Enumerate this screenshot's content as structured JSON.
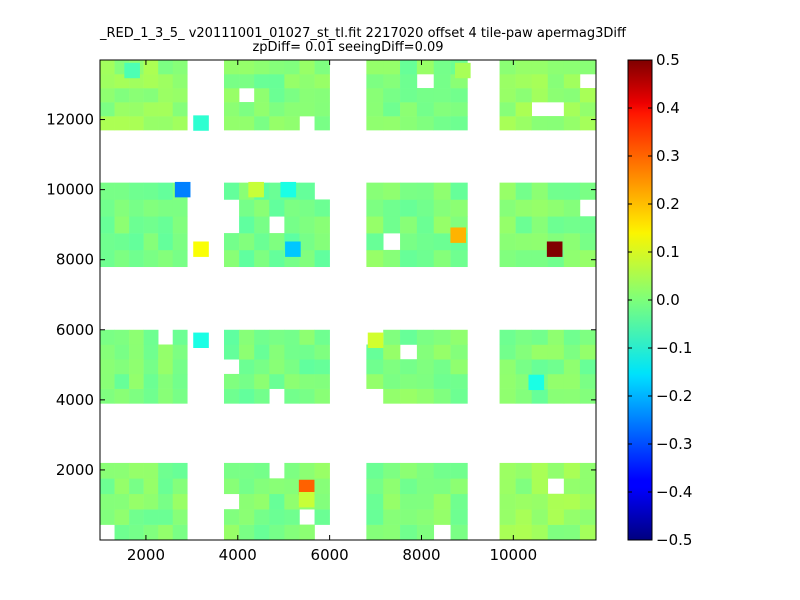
{
  "chart_data": {
    "type": "heatmap",
    "title": "_RED_1_3_5_ v20111001_01027_st_tl.fit 2217020 offset 4 tile-paw apermag3Diff",
    "subtitle": "zpDiff= 0.01 seeingDiff=0.09",
    "xlabel": "",
    "ylabel": "",
    "xlim": [
      1000,
      11800
    ],
    "ylim": [
      0,
      13700
    ],
    "xticks": [
      "2000",
      "4000",
      "6000",
      "8000",
      "10000"
    ],
    "xtick_values": [
      2000,
      4000,
      6000,
      8000,
      10000
    ],
    "yticks": [
      "2000",
      "4000",
      "6000",
      "8000",
      "10000",
      "12000"
    ],
    "ytick_values": [
      2000,
      4000,
      6000,
      8000,
      10000,
      12000
    ],
    "colormap": "jet",
    "color_range": [
      -0.5,
      0.5
    ],
    "colorbar_ticks": [
      "0.5",
      "0.4",
      "0.3",
      "0.2",
      "0.1",
      "0.0",
      "−0.1",
      "−0.2",
      "−0.3",
      "−0.4",
      "−0.5"
    ],
    "colorbar_tick_values": [
      0.5,
      0.4,
      0.3,
      0.2,
      0.1,
      0.0,
      -0.1,
      -0.2,
      -0.3,
      -0.4,
      -0.5
    ],
    "cell_size": [
      340,
      440
    ],
    "tiles": [
      {
        "x": [
          1000,
          2900
        ],
        "y": [
          0,
          2200
        ],
        "value": 0.0
      },
      {
        "x": [
          3700,
          6000
        ],
        "y": [
          0,
          2200
        ],
        "value": 0.0
      },
      {
        "x": [
          6800,
          9000
        ],
        "y": [
          0,
          2200
        ],
        "value": 0.0
      },
      {
        "x": [
          9700,
          11800
        ],
        "y": [
          0,
          2200
        ],
        "value": 0.02
      },
      {
        "x": [
          1000,
          2900
        ],
        "y": [
          3900,
          6000
        ],
        "value": 0.0
      },
      {
        "x": [
          3700,
          6000
        ],
        "y": [
          3900,
          6000
        ],
        "value": -0.01
      },
      {
        "x": [
          6800,
          9000
        ],
        "y": [
          3900,
          6000
        ],
        "value": 0.0
      },
      {
        "x": [
          9700,
          11800
        ],
        "y": [
          3900,
          6000
        ],
        "value": 0.0
      },
      {
        "x": [
          1000,
          2900
        ],
        "y": [
          7800,
          10200
        ],
        "value": -0.01
      },
      {
        "x": [
          3700,
          6000
        ],
        "y": [
          7800,
          10200
        ],
        "value": -0.01
      },
      {
        "x": [
          6800,
          9000
        ],
        "y": [
          7800,
          10200
        ],
        "value": 0.0
      },
      {
        "x": [
          9700,
          11800
        ],
        "y": [
          7800,
          10200
        ],
        "value": 0.0
      },
      {
        "x": [
          1000,
          2900
        ],
        "y": [
          11700,
          13700
        ],
        "value": 0.02
      },
      {
        "x": [
          3700,
          6000
        ],
        "y": [
          11700,
          13700
        ],
        "value": 0.0
      },
      {
        "x": [
          6800,
          9000
        ],
        "y": [
          11700,
          13700
        ],
        "value": 0.0
      },
      {
        "x": [
          9700,
          11800
        ],
        "y": [
          11700,
          13700
        ],
        "value": 0.02
      }
    ],
    "highlight_cells": [
      {
        "x": 10900,
        "y": 8300,
        "value": 0.5
      },
      {
        "x": 5500,
        "y": 1500,
        "value": 0.28
      },
      {
        "x": 8800,
        "y": 8700,
        "value": 0.2
      },
      {
        "x": 3200,
        "y": 8300,
        "value": 0.12
      },
      {
        "x": 7000,
        "y": 5700,
        "value": 0.08
      },
      {
        "x": 4400,
        "y": 10000,
        "value": 0.07
      },
      {
        "x": 5500,
        "y": 1150,
        "value": 0.07
      },
      {
        "x": 2800,
        "y": 10000,
        "value": -0.25
      },
      {
        "x": 5200,
        "y": 8300,
        "value": -0.18
      },
      {
        "x": 5100,
        "y": 10000,
        "value": -0.1
      },
      {
        "x": 3200,
        "y": 5700,
        "value": -0.1
      },
      {
        "x": 3200,
        "y": 11900,
        "value": -0.08
      },
      {
        "x": 10500,
        "y": 4500,
        "value": -0.1
      },
      {
        "x": 1700,
        "y": 13400,
        "value": -0.05
      },
      {
        "x": 8900,
        "y": 13400,
        "value": 0.04
      }
    ]
  }
}
